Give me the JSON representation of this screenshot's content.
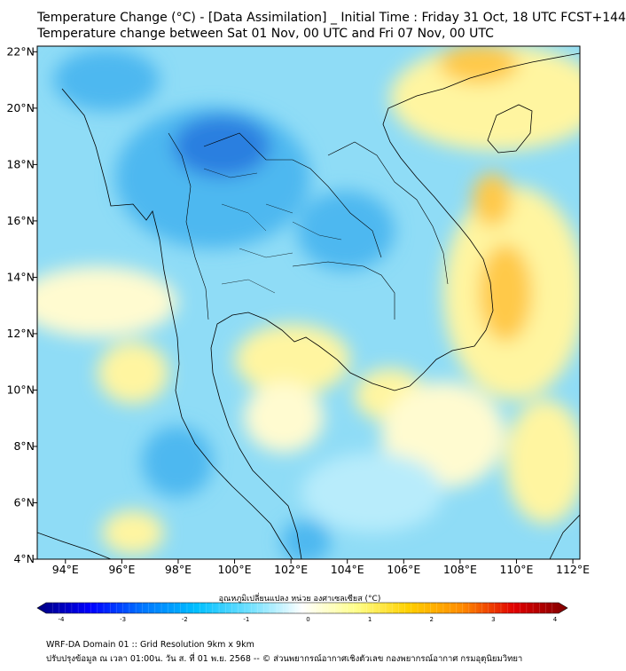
{
  "title_line1": "Temperature Change (°C) - [Data Assimilation] _ Initial Time : Friday 31 Oct, 18 UTC FCST+144",
  "title_line2": "Temperature change between Sat 01 Nov, 00 UTC and Fri 07 Nov, 00 UTC",
  "lon_labels": [
    "94°E",
    "96°E",
    "98°E",
    "100°E",
    "102°E",
    "104°E",
    "106°E",
    "108°E",
    "110°E",
    "112°E"
  ],
  "lat_labels": [
    "22°N",
    "20°N",
    "18°N",
    "16°N",
    "14°N",
    "12°N",
    "10°N",
    "8°N",
    "6°N",
    "4°N"
  ],
  "colorbar": {
    "title": "อุณหภูมิเปลี่ยนแปลง หน่วย องศาเซลเซียส (°C)",
    "min": -4,
    "max": 4,
    "ticks": [
      "-4",
      "-3",
      "-2",
      "-1",
      "0",
      "1",
      "2",
      "3",
      "4"
    ],
    "colors": [
      "#00007f",
      "#0000ff",
      "#0077ff",
      "#00bfff",
      "#6fe0ff",
      "#ffffff",
      "#ffff8c",
      "#ffd000",
      "#ff8c00",
      "#e00000",
      "#7f0000"
    ]
  },
  "footer_line1": "WRF-DA Domain 01 :: Grid Resolution 9km x 9km",
  "footer_line2": "ปรับปรุงข้อมูล ณ เวลา 01:00น. วัน ส. ที่ 01 พ.ย. 2568 -- © ส่วนพยากรณ์อากาศเชิงตัวเลข กองพยากรณ์อากาศ กรมอุตุนิยมวิทยา",
  "map_colors": {
    "background": "#8fdcf6",
    "deep_blue": "#2a7fe0",
    "blue": "#4db8f0",
    "light_blue": "#b8ecfb",
    "yellow": "#fff5a0",
    "light_yellow": "#fffbd0",
    "orange": "#ffc94a",
    "coast": "#000000"
  }
}
